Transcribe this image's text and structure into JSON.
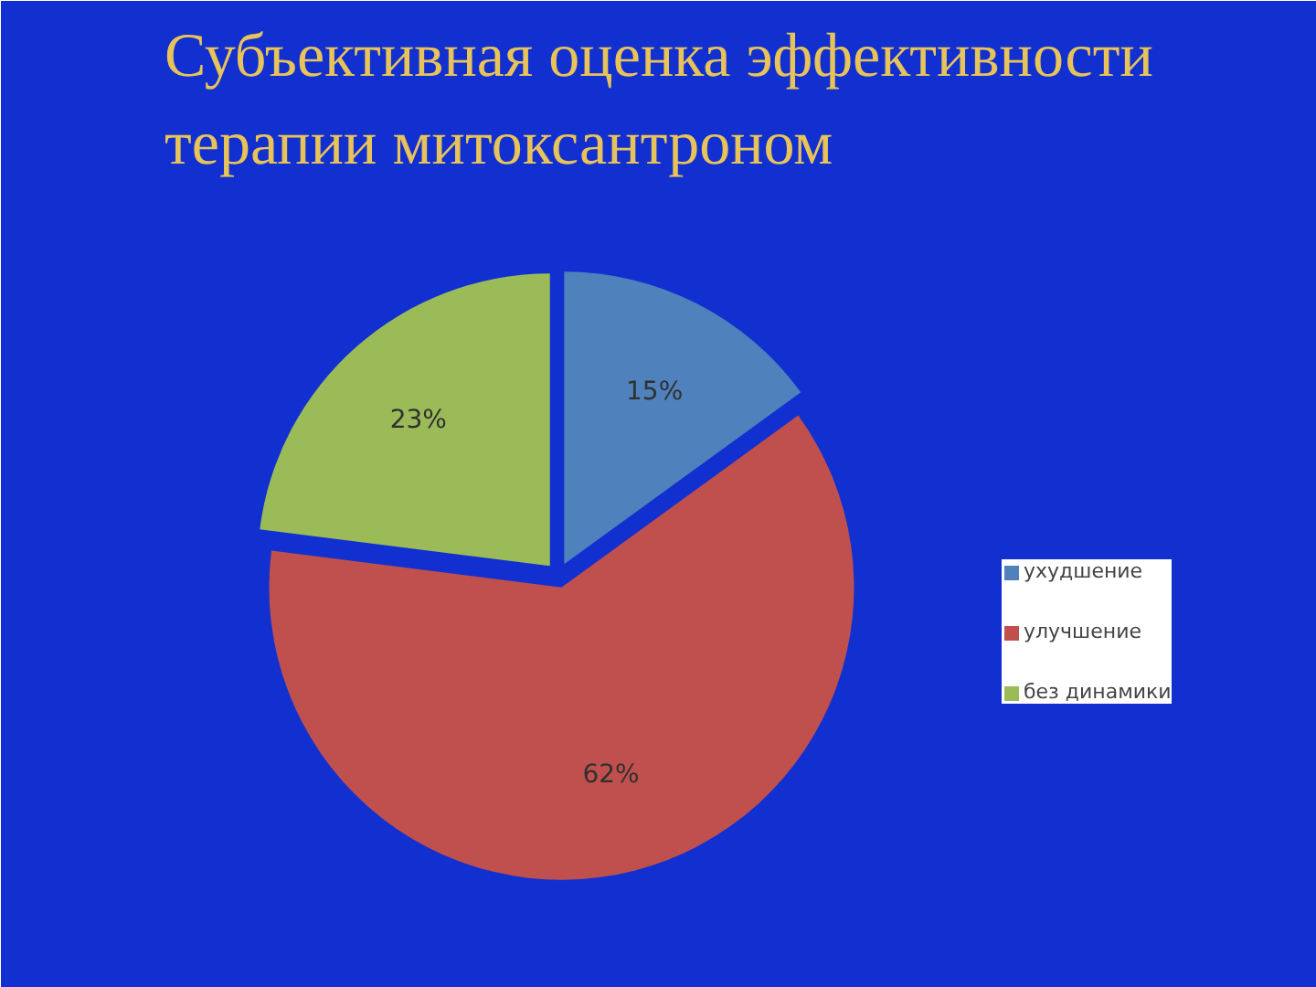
{
  "chart_data": {
    "type": "pie",
    "title": "Субъективная оценка эффективности\nтерапии митоксантроном",
    "categories": [
      "ухудшение",
      "улучшение",
      "без динамики"
    ],
    "values": [
      15,
      62,
      23
    ],
    "colors": [
      "#4f81bd",
      "#c0504d",
      "#9bbb59"
    ],
    "value_labels": [
      "15%",
      "62%",
      "23%"
    ],
    "legend": "right"
  }
}
